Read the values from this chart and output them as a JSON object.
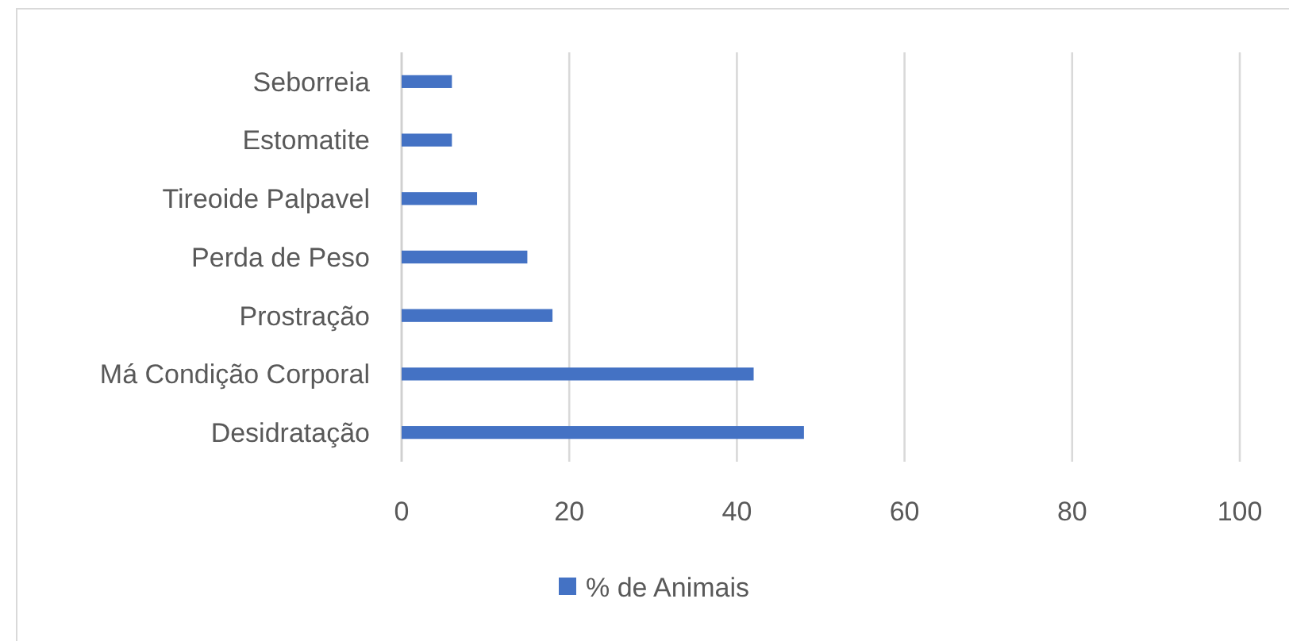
{
  "chart_data": {
    "type": "bar",
    "orientation": "horizontal",
    "categories": [
      "Seborreia",
      "Estomatite",
      "Tireoide Palpavel",
      "Perda de Peso",
      "Prostração",
      "Má Condição Corporal",
      "Desidratação"
    ],
    "series": [
      {
        "name": "% de Animais",
        "color": "#4472c4",
        "values": [
          6,
          6,
          9,
          15,
          18,
          42,
          48
        ]
      }
    ],
    "xlim": [
      0,
      100
    ],
    "xticks": [
      0,
      20,
      40,
      60,
      80,
      100
    ],
    "grid": "x",
    "legend": "bottom"
  }
}
